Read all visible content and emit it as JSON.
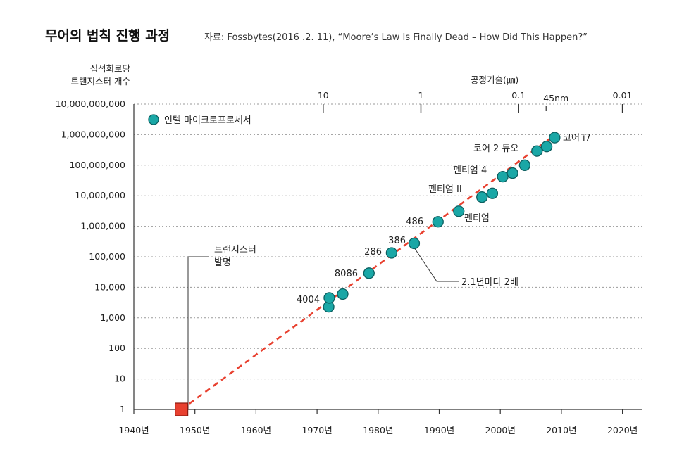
{
  "chart_data": {
    "type": "scatter",
    "title": "무어의 법칙 진행 과정",
    "source": "자료: Fossbytes(2016 .2. 11), “Moore’s Law Is Finally Dead – How Did This Happen?”",
    "ylabel_line1": "집적회로당",
    "ylabel_line2": "트랜지스터 개수",
    "y_scale": "log",
    "ylim": [
      1,
      10000000000
    ],
    "y_ticks": [
      {
        "value": 1,
        "label": "1"
      },
      {
        "value": 10,
        "label": "10"
      },
      {
        "value": 100,
        "label": "100"
      },
      {
        "value": 1000,
        "label": "1,000"
      },
      {
        "value": 10000,
        "label": "10,000"
      },
      {
        "value": 100000,
        "label": "100,000"
      },
      {
        "value": 1000000,
        "label": "1,000,000"
      },
      {
        "value": 10000000,
        "label": "10,000,000"
      },
      {
        "value": 100000000,
        "label": "100,000,000"
      },
      {
        "value": 1000000000,
        "label": "1,000,000,000"
      },
      {
        "value": 10000000000,
        "label": "10,000,000,000"
      }
    ],
    "xlim": [
      1940,
      2025
    ],
    "x_ticks": [
      {
        "value": 1940,
        "label": "1940년"
      },
      {
        "value": 1950,
        "label": "1950년"
      },
      {
        "value": 1960,
        "label": "1960년"
      },
      {
        "value": 1970,
        "label": "1970년"
      },
      {
        "value": 1980,
        "label": "1980년"
      },
      {
        "value": 1990,
        "label": "1990년"
      },
      {
        "value": 2000,
        "label": "2000년"
      },
      {
        "value": 2010,
        "label": "2010년"
      },
      {
        "value": 2020,
        "label": "2020년"
      }
    ],
    "top_axis_label": "공정기술(㎛)",
    "top_ticks": [
      {
        "year": 1971,
        "label": "10"
      },
      {
        "year": 1987,
        "label": "1"
      },
      {
        "year": 2003,
        "label": "0.1"
      },
      {
        "year": 2007.5,
        "label": "45nm"
      },
      {
        "year": 2020,
        "label": "0.01"
      }
    ],
    "legend": "인텔 마이크로프로세서",
    "series": [
      {
        "name": "인텔 마이크로프로세서",
        "color": "#1aa7a6",
        "points": [
          {
            "x": 1971.9,
            "y": 2300
          },
          {
            "x": 1972.0,
            "y": 4500
          },
          {
            "x": 1974.2,
            "y": 6000
          },
          {
            "x": 1978.5,
            "y": 29000
          },
          {
            "x": 1982.2,
            "y": 134000
          },
          {
            "x": 1985.9,
            "y": 275000
          },
          {
            "x": 1989.8,
            "y": 1400000
          },
          {
            "x": 1993.2,
            "y": 3100000
          },
          {
            "x": 1997.0,
            "y": 9000000
          },
          {
            "x": 1998.7,
            "y": 12000000
          },
          {
            "x": 2000.4,
            "y": 42000000
          },
          {
            "x": 2002.0,
            "y": 55000000
          },
          {
            "x": 2004.0,
            "y": 100000000
          },
          {
            "x": 2006.0,
            "y": 291000000
          },
          {
            "x": 2007.6,
            "y": 410000000
          },
          {
            "x": 2008.9,
            "y": 800000000
          }
        ]
      }
    ],
    "transistor_invention": {
      "x": 1947.8,
      "y": 1,
      "color": "#e8402f"
    },
    "trend_line": {
      "from": [
        1947.8,
        1
      ],
      "to": [
        2009,
        1000000000
      ],
      "color": "#e8402f",
      "style": "dashed"
    },
    "annotations": [
      {
        "id": "invention-line1",
        "text": "트랜지스터"
      },
      {
        "id": "invention-line2",
        "text": "발명"
      },
      {
        "id": "trend",
        "text": "2.1년마다 2배"
      },
      {
        "id": "label-4004",
        "text": "4004"
      },
      {
        "id": "label-8086",
        "text": "8086"
      },
      {
        "id": "label-286",
        "text": "286"
      },
      {
        "id": "label-386",
        "text": "386"
      },
      {
        "id": "label-486",
        "text": "486"
      },
      {
        "id": "label-pentium",
        "text": "펜티엄"
      },
      {
        "id": "label-pentium2",
        "text": "펜티엄 II"
      },
      {
        "id": "label-pentium4",
        "text": "펜티엄 4"
      },
      {
        "id": "label-core2",
        "text": "코어 2 듀오"
      },
      {
        "id": "label-corei7",
        "text": "코어 i7"
      }
    ]
  }
}
